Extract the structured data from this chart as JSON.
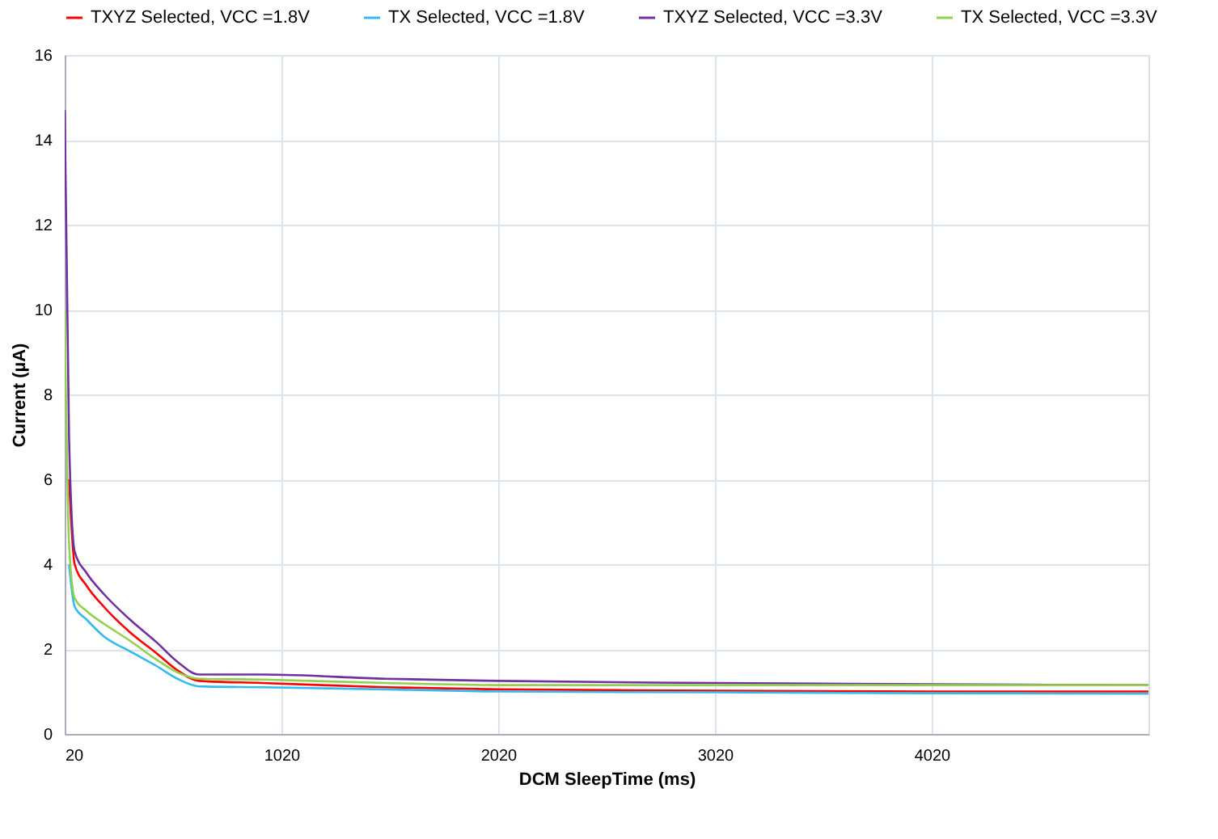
{
  "chart_data": {
    "type": "line",
    "xlabel": "DCM SleepTime (ms)",
    "ylabel": "Current  (µA)",
    "x": [
      20,
      40,
      66,
      120,
      200,
      320,
      444,
      540,
      640,
      932,
      1500,
      2020,
      3020,
      4020,
      5020
    ],
    "series": [
      {
        "name": "TXYZ Selected, VCC =1.8V",
        "color": "#ff0000",
        "values": [
          null,
          6,
          4.0,
          3.5,
          3.0,
          2.4,
          1.9,
          1.5,
          1.25,
          1.2,
          1.1,
          1.05,
          1.02,
          1.0,
          1.0
        ]
      },
      {
        "name": "TX Selected, VCC =1.8V",
        "color": "#33bbee",
        "values": [
          null,
          4,
          3.0,
          2.7,
          2.3,
          1.95,
          1.6,
          1.3,
          1.12,
          1.1,
          1.05,
          1.0,
          0.98,
          0.96,
          0.95
        ]
      },
      {
        "name": "TXYZ Selected, VCC =3.3V",
        "color": "#7030a0",
        "values": [
          14.7,
          7,
          4.3,
          3.8,
          3.3,
          2.7,
          2.16,
          1.7,
          1.4,
          1.4,
          1.3,
          1.25,
          1.2,
          1.17,
          1.15
        ]
      },
      {
        "name": "TX Selected, VCC =3.3V",
        "color": "#92d050",
        "values": [
          10,
          4.5,
          3.2,
          2.9,
          2.6,
          2.2,
          1.75,
          1.45,
          1.3,
          1.28,
          1.2,
          1.15,
          1.15,
          1.15,
          1.15
        ]
      }
    ],
    "xlim": [
      20,
      5020
    ],
    "xticks": [
      20,
      1020,
      2020,
      3020,
      4020
    ],
    "ylim": [
      0,
      16
    ],
    "yticks": [
      0,
      2,
      4,
      6,
      8,
      10,
      12,
      14,
      16
    ],
    "grid": true,
    "legend": "top",
    "marker": "none",
    "line_style": "solid"
  }
}
